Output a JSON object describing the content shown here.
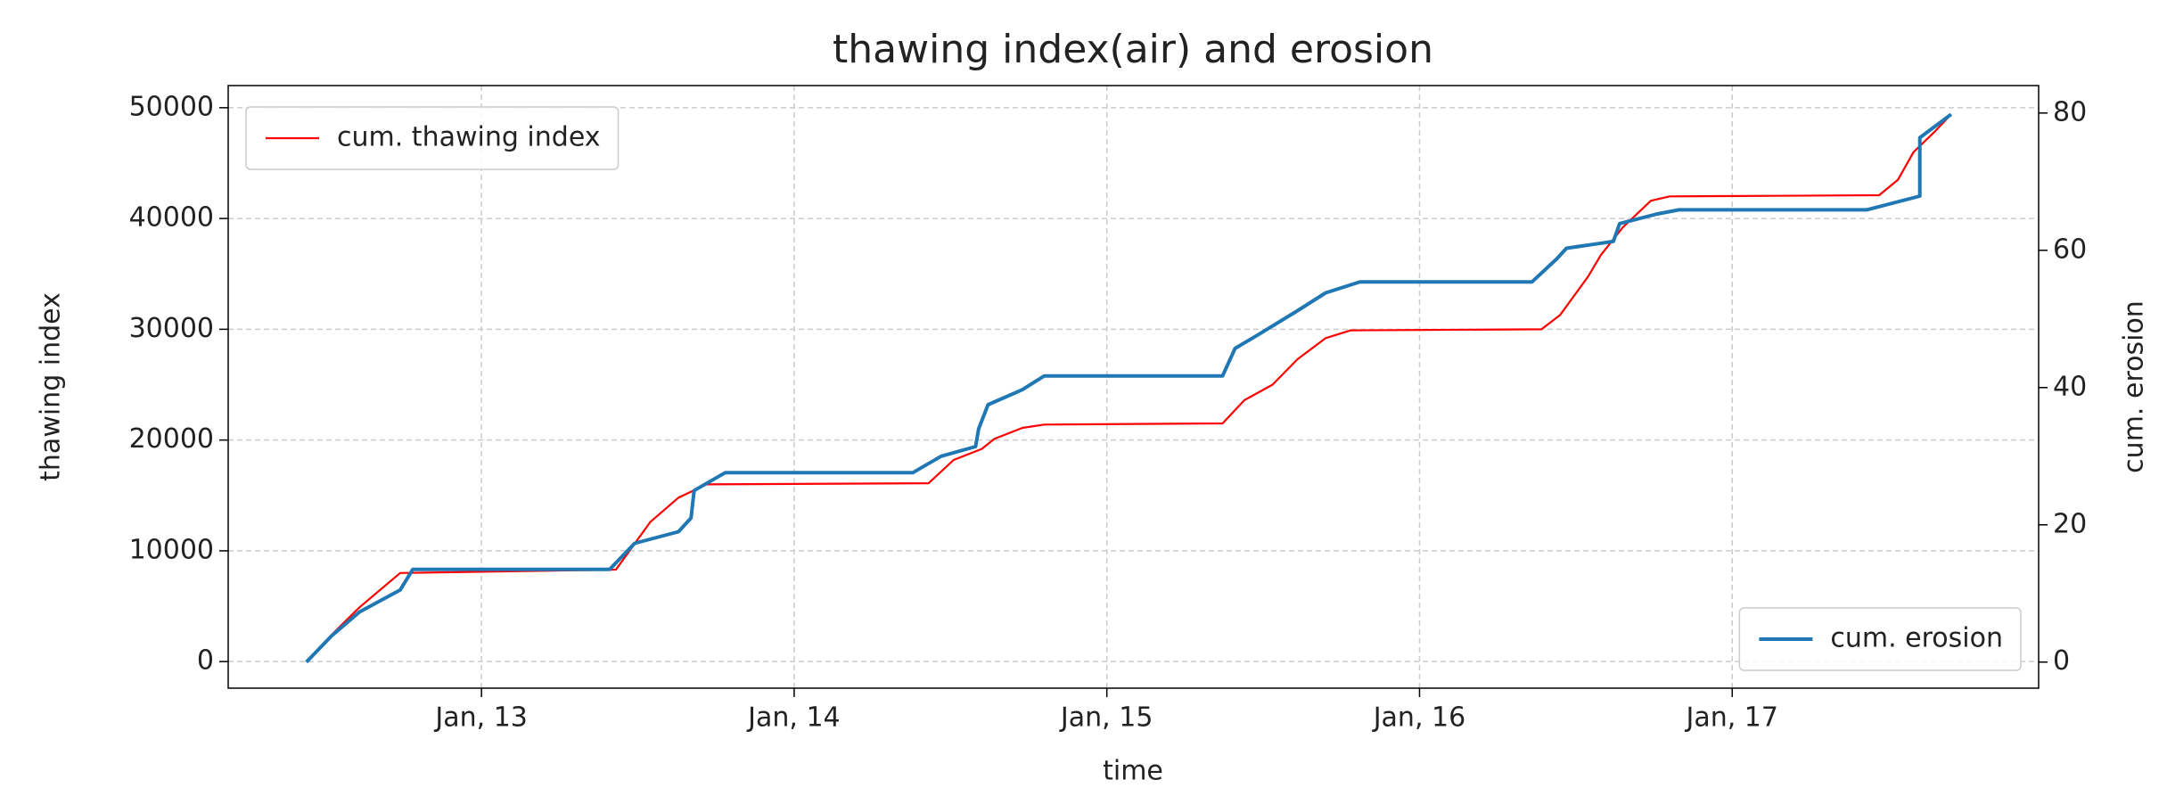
{
  "chart_data": {
    "type": "line",
    "title": "thawing index(air) and erosion",
    "title_color": "#0000ff",
    "xlabel": "time",
    "ylabel": "thawing index",
    "ylabel_color": "#008000",
    "y2label": "cum. erosion",
    "y2label_color": "#0000ff",
    "xlim": [
      2012.19,
      2017.98
    ],
    "xticks": [
      {
        "value": 2013,
        "label": "Jan, 13"
      },
      {
        "value": 2014,
        "label": "Jan, 14"
      },
      {
        "value": 2015,
        "label": "Jan, 15"
      },
      {
        "value": 2016,
        "label": "Jan, 16"
      },
      {
        "value": 2017,
        "label": "Jan, 17"
      }
    ],
    "ylim": [
      -2400,
      52000
    ],
    "yticks": [
      0,
      10000,
      20000,
      30000,
      40000,
      50000
    ],
    "y2lim": [
      -3.8,
      84
    ],
    "y2ticks": [
      0,
      20,
      40,
      60,
      80
    ],
    "grid": true,
    "series": [
      {
        "name": "cum. thawing index",
        "color": "#ff0000",
        "legend_loc": "upper left",
        "x": [
          2012.44,
          2012.52,
          2012.61,
          2012.74,
          2013.43,
          2013.54,
          2013.63,
          2013.72,
          2014.43,
          2014.51,
          2014.6,
          2014.64,
          2014.73,
          2014.8,
          2015.37,
          2015.44,
          2015.53,
          2015.61,
          2015.7,
          2015.78,
          2016.39,
          2016.45,
          2016.54,
          2016.58,
          2016.65,
          2016.74,
          2016.8,
          2017.47,
          2017.53,
          2017.58,
          2017.65,
          2017.7
        ],
        "values": [
          0,
          2400,
          4900,
          8000,
          8300,
          12600,
          14800,
          16000,
          16100,
          18200,
          19200,
          20100,
          21100,
          21400,
          21500,
          23600,
          25000,
          27300,
          29200,
          29900,
          30000,
          31300,
          34800,
          36700,
          39200,
          41600,
          42000,
          42100,
          43500,
          46000,
          47900,
          49400
        ]
      },
      {
        "name": "cum. erosion",
        "color": "#1f77b4",
        "axis": "y2",
        "legend_loc": "lower right",
        "x": [
          2012.44,
          2012.52,
          2012.61,
          2012.74,
          2012.78,
          2013.41,
          2013.49,
          2013.63,
          2013.67,
          2013.68,
          2013.78,
          2014.38,
          2014.47,
          2014.58,
          2014.59,
          2014.62,
          2014.73,
          2014.8,
          2015.37,
          2015.41,
          2015.48,
          2015.61,
          2015.7,
          2015.81,
          2016.36,
          2016.44,
          2016.47,
          2016.62,
          2016.64,
          2016.76,
          2016.83,
          2017.43,
          2017.6,
          2017.6,
          2017.7
        ],
        "values": [
          0,
          3.8,
          7.3,
          10.5,
          13.5,
          13.5,
          17.3,
          19,
          21,
          25,
          27.6,
          27.6,
          30,
          31.4,
          34,
          37.5,
          39.7,
          41.7,
          41.7,
          45.7,
          47.6,
          51.2,
          53.8,
          55.4,
          55.4,
          58.8,
          60.3,
          61.3,
          63.9,
          65.3,
          65.9,
          65.9,
          67.9,
          76.4,
          79.8
        ]
      }
    ]
  }
}
